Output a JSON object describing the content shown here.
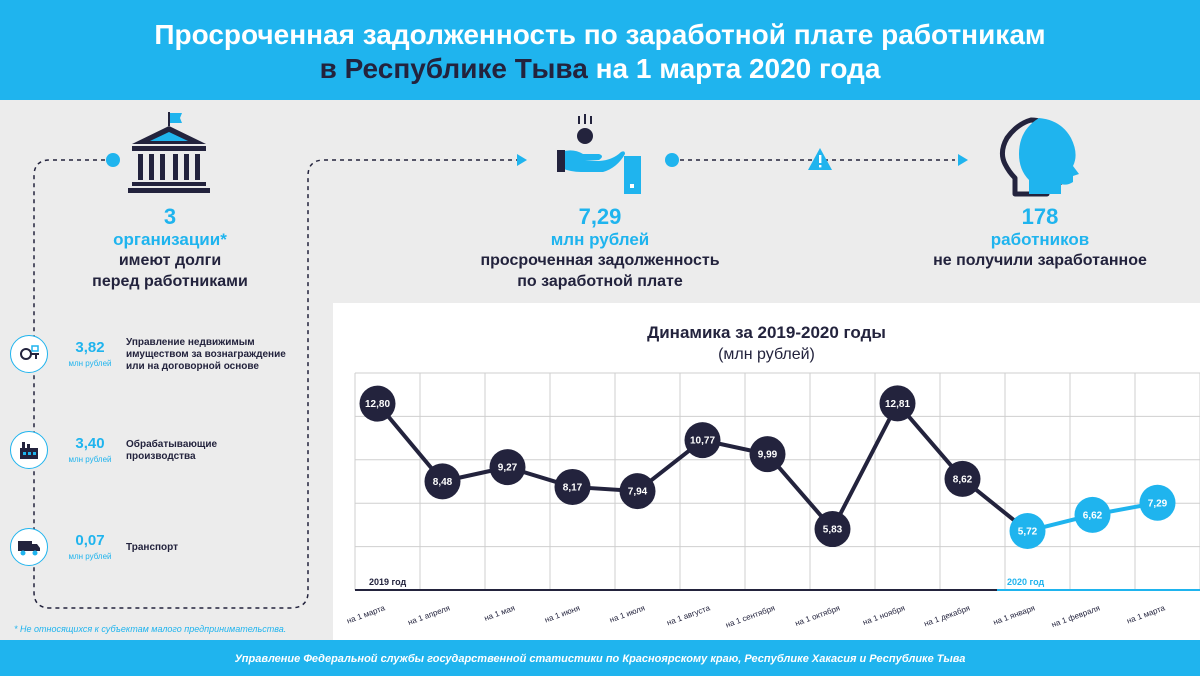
{
  "header": {
    "title_line1": "Просроченная задолженность по заработной плате работникам",
    "title_line2_highlight": "в Республике Тыва",
    "title_line2_rest": " на 1 марта 2020 года"
  },
  "stats": {
    "organizations": {
      "value": "3",
      "label": "организации*",
      "desc_line1": "имеют долги",
      "desc_line2": "перед работниками"
    },
    "debt": {
      "value": "7,29",
      "label": "млн рублей",
      "desc_line1": "просроченная задолженность",
      "desc_line2": "по заработной плате"
    },
    "workers": {
      "value": "178",
      "label": "работников",
      "desc_line1": "не получили заработанное"
    }
  },
  "breakdown": [
    {
      "value": "3,82",
      "unit": "млн рублей",
      "label_line1": "Управление недвижимым",
      "label_line2": "имуществом за вознаграждение",
      "label_line3": "или на договорной основе",
      "icon": "property-keys-icon"
    },
    {
      "value": "3,40",
      "unit": "млн рублей",
      "label_line1": "Обрабатывающие",
      "label_line2": "производства",
      "label_line3": "",
      "icon": "factory-icon"
    },
    {
      "value": "0,07",
      "unit": "млн рублей",
      "label_line1": "Транспорт",
      "label_line2": "",
      "label_line3": "",
      "icon": "truck-icon"
    }
  ],
  "footnote": "* Не относящихся к субъектам малого предпринимательства.",
  "footer": "Управление Федеральной службы государственной статистики по Красноярскому краю, Республике Хакасия и Республике Тыва",
  "colors": {
    "accent": "#1fb4ee",
    "dark": "#23233d",
    "background": "#ececec"
  },
  "chart_data": {
    "type": "line",
    "title": "Динамика за 2019-2020 годы",
    "subtitle": "(млн рублей)",
    "x": [
      "на 1 марта",
      "на 1 апреля",
      "на 1 мая",
      "на 1 июня",
      "на 1 июля",
      "на 1 августа",
      "на 1 сентября",
      "на 1 октября",
      "на 1 ноября",
      "на 1 декабря",
      "на 1 января",
      "на 1 февраля",
      "на 1 марта"
    ],
    "values": [
      12.8,
      8.48,
      9.27,
      8.17,
      7.94,
      10.77,
      9.99,
      5.83,
      12.81,
      8.62,
      5.72,
      6.62,
      7.29
    ],
    "value_labels": [
      "12,80",
      "8,48",
      "9,27",
      "8,17",
      "7,94",
      "10,77",
      "9,99",
      "5,83",
      "12,81",
      "8,62",
      "5,72",
      "6,62",
      "7,29"
    ],
    "series": [
      {
        "name": "2019 год",
        "from_index": 0,
        "to_index": 10,
        "color": "#23233d"
      },
      {
        "name": "2020 год",
        "from_index": 10,
        "to_index": 12,
        "color": "#1fb4ee"
      }
    ],
    "ylim": [
      3,
      14.5
    ],
    "grid": true
  }
}
